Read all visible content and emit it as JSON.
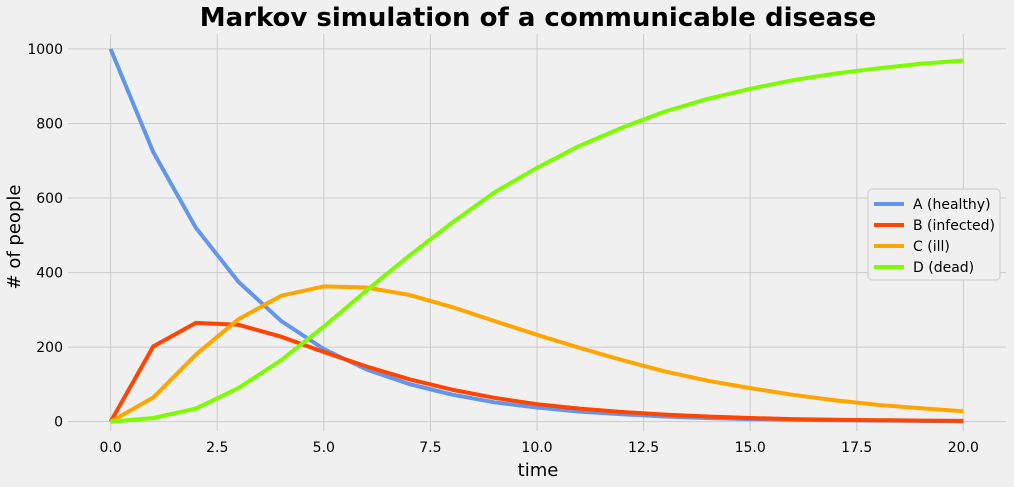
{
  "chart_data": {
    "type": "line",
    "title": "Markov simulation of a communicable disease",
    "xlabel": "time",
    "ylabel": "# of people",
    "xlim": [
      -1,
      21
    ],
    "ylim": [
      -25,
      1040
    ],
    "grid": true,
    "legend_position": "center-right",
    "x_ticks": [
      0.0,
      2.5,
      5.0,
      7.5,
      10.0,
      12.5,
      15.0,
      17.5,
      20.0
    ],
    "x_tick_labels": [
      "0.0",
      "2.5",
      "5.0",
      "7.5",
      "10.0",
      "12.5",
      "15.0",
      "17.5",
      "20.0"
    ],
    "y_ticks": [
      0,
      200,
      400,
      600,
      800,
      1000
    ],
    "y_tick_labels": [
      "0",
      "200",
      "400",
      "600",
      "800",
      "1000"
    ],
    "x": [
      0,
      1,
      2,
      3,
      4,
      5,
      6,
      7,
      8,
      9,
      10,
      11,
      12,
      13,
      14,
      15,
      16,
      17,
      18,
      19,
      20
    ],
    "series": [
      {
        "name": "A (healthy)",
        "color": "#6495ed",
        "values": [
          1000,
          723,
          520,
          375,
          270,
          195,
          140,
          101,
          73,
          52,
          38,
          27,
          20,
          14,
          10,
          7,
          5,
          4,
          3,
          2,
          1
        ]
      },
      {
        "name": "B (infected)",
        "color": "#ff4500",
        "values": [
          0,
          202,
          265,
          260,
          228,
          187,
          148,
          114,
          86,
          64,
          47,
          35,
          26,
          19,
          14,
          10,
          7,
          5,
          4,
          3,
          2
        ]
      },
      {
        "name": "C (ill)",
        "color": "#ffa500",
        "values": [
          0,
          65,
          180,
          275,
          338,
          363,
          360,
          340,
          308,
          270,
          233,
          198,
          165,
          135,
          110,
          90,
          72,
          57,
          45,
          36,
          28
        ]
      },
      {
        "name": "D (dead)",
        "color": "#7cfc00",
        "values": [
          0,
          10,
          35,
          90,
          165,
          255,
          352,
          445,
          533,
          615,
          681,
          740,
          789,
          832,
          866,
          893,
          916,
          934,
          948,
          960,
          969
        ]
      }
    ]
  }
}
